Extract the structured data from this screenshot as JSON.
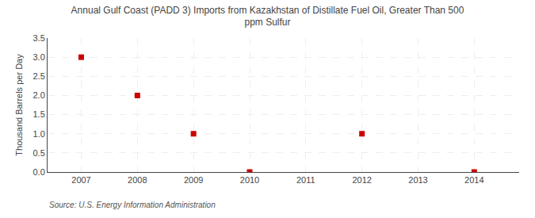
{
  "chart_data": {
    "type": "scatter",
    "title": "Annual Gulf Coast (PADD 3) Imports from Kazakhstan of Distillate Fuel Oil, Greater Than 500\nppm Sulfur",
    "ylabel": "Thousand Barrels per Day",
    "source": "Source: U.S. Energy Information Administration",
    "x": [
      2007,
      2008,
      2009,
      2010,
      2012,
      2014
    ],
    "values": [
      3.0,
      2.0,
      1.0,
      0.0,
      1.0,
      0.0
    ],
    "color": "#cc0000",
    "marker": "square",
    "grid": true,
    "xlim": [
      2006.4,
      2014.8
    ],
    "xticks": [
      2007,
      2008,
      2009,
      2010,
      2011,
      2012,
      2013,
      2014
    ],
    "ylim": [
      0.0,
      3.5
    ],
    "yticks": [
      {
        "value": 0,
        "label": "0.0"
      },
      0.5,
      {
        "value": 1,
        "label": "1.0"
      },
      1.5,
      {
        "value": 2,
        "label": "2.0"
      },
      2.5,
      {
        "value": 3,
        "label": "3.0"
      },
      3.5
    ]
  }
}
